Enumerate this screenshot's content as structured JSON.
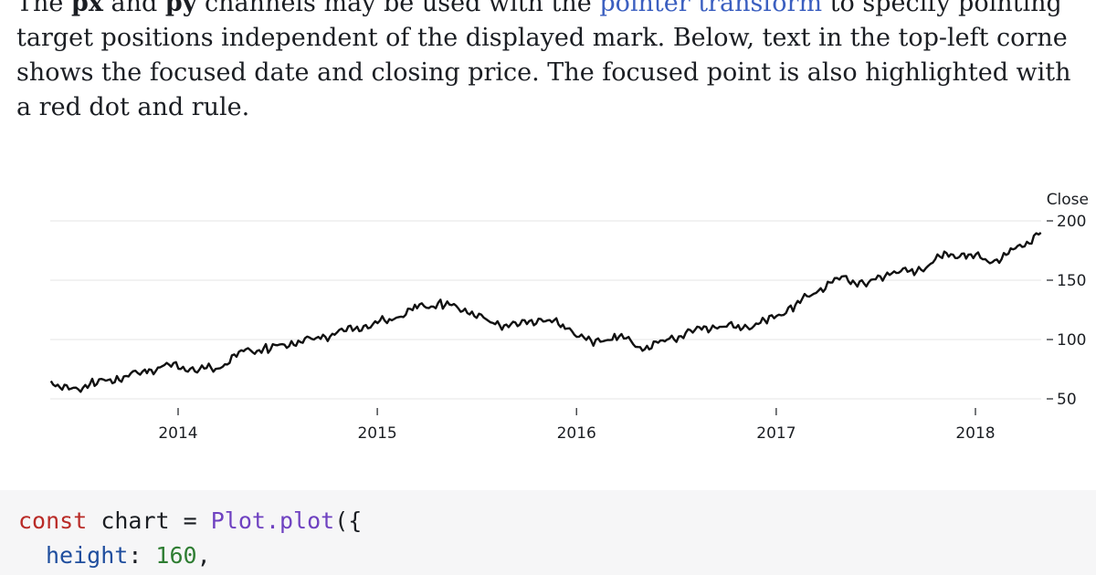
{
  "prose": {
    "line1_pre": "The ",
    "px": "px",
    "and": " and ",
    "py": "py",
    "line1_mid": " channels may be used with the ",
    "link": "pointer transform",
    "line1_post": " to specify pointing",
    "line2": "target positions independent of the displayed mark. Below, text in the top-left corne",
    "line3": "shows the focused date and closing price. The focused point is also highlighted with",
    "line4": "a red dot and rule."
  },
  "chart_data": {
    "type": "line",
    "ylabel": "Close",
    "y_ticks": [
      50,
      100,
      150,
      200
    ],
    "y_tick_labels": [
      "50",
      "100",
      "150",
      "200"
    ],
    "x_ticks": [
      "2014",
      "2015",
      "2016",
      "2017",
      "2018"
    ],
    "ylim": [
      40,
      205
    ],
    "grid": true,
    "y_axis_side": "right",
    "series": [
      {
        "x": [
          "2013-05-13",
          "2013-06-15",
          "2013-08-01",
          "2013-09-15",
          "2013-11-01",
          "2013-12-15",
          "2014-02-01",
          "2014-03-15",
          "2014-05-01",
          "2014-06-15",
          "2014-08-01",
          "2014-09-15",
          "2014-11-01",
          "2014-12-15",
          "2015-02-01",
          "2015-03-15",
          "2015-05-01",
          "2015-06-15",
          "2015-08-01",
          "2015-09-15",
          "2015-11-01",
          "2015-12-15",
          "2016-02-01",
          "2016-03-15",
          "2016-05-01",
          "2016-06-15",
          "2016-08-01",
          "2016-09-15",
          "2016-11-01",
          "2016-12-15",
          "2017-02-01",
          "2017-03-15",
          "2017-05-01",
          "2017-06-15",
          "2017-08-01",
          "2017-09-15",
          "2017-11-01",
          "2017-12-15",
          "2018-02-01",
          "2018-03-15",
          "2018-05-01"
        ],
        "values": [
          65,
          57,
          63,
          68,
          73,
          78,
          75,
          76,
          90,
          92,
          98,
          101,
          107,
          112,
          118,
          127,
          130,
          125,
          113,
          112,
          118,
          110,
          96,
          104,
          93,
          99,
          107,
          112,
          110,
          115,
          128,
          141,
          152,
          146,
          158,
          157,
          170,
          172,
          166,
          175,
          190
        ]
      }
    ]
  }
}
